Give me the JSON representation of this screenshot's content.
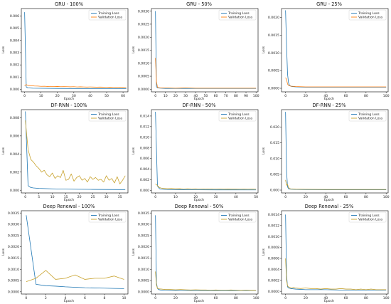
{
  "chart_data": [
    {
      "type": "line",
      "title": "GRU - 100%",
      "xlabel": "Epoch",
      "ylabel": "Loss",
      "xlim": [
        -2,
        63
      ],
      "ylim": [
        -0.0002,
        0.0066
      ],
      "xticks": [
        0,
        10,
        20,
        30,
        40,
        50,
        60
      ],
      "yticks": [
        0.0,
        0.001,
        0.002,
        0.003,
        0.004,
        0.005,
        0.006
      ],
      "ytick_labels": [
        "0.000",
        "0.001",
        "0.002",
        "0.003",
        "0.004",
        "0.005",
        "0.006"
      ],
      "legend": "top-right",
      "series": [
        {
          "name": "Training Loss",
          "color": "#1f77b4",
          "x": [
            0,
            1,
            2,
            5,
            10,
            20,
            30,
            40,
            50,
            60,
            62
          ],
          "y": [
            0.0063,
            0.0002,
            0.00012,
            0.0001,
            9e-05,
            8e-05,
            7e-05,
            7e-05,
            6e-05,
            6e-05,
            6e-05
          ]
        },
        {
          "name": "Validation Loss",
          "color": "#ff7f0e",
          "x": [
            0,
            1,
            2,
            4,
            6,
            8,
            10,
            12,
            14,
            16,
            18,
            20,
            22,
            24,
            26,
            28,
            30,
            32,
            34,
            36,
            38,
            40,
            42,
            44,
            46,
            48,
            50,
            52,
            54,
            56,
            58,
            60,
            62
          ],
          "y": [
            0.0003,
            0.0004,
            0.00032,
            0.0003,
            0.00028,
            0.00027,
            0.00025,
            0.00026,
            0.00024,
            0.00025,
            0.00023,
            0.00024,
            0.00022,
            0.00023,
            0.00022,
            0.00021,
            0.00022,
            0.0002,
            0.00021,
            0.0002,
            0.00019,
            0.0002,
            0.00019,
            0.00018,
            0.00019,
            0.00018,
            0.00017,
            0.00018,
            0.00017,
            0.00016,
            0.00017,
            0.00016,
            0.00015
          ]
        }
      ]
    },
    {
      "type": "line",
      "title": "GRU - 50%",
      "xlabel": "Epoch",
      "ylabel": "Loss",
      "xlim": [
        -4,
        102
      ],
      "ylim": [
        -0.0001,
        0.0031
      ],
      "xticks": [
        0,
        10,
        20,
        30,
        40,
        50,
        60,
        70,
        80,
        90,
        100
      ],
      "yticks": [
        0.0,
        0.0005,
        0.001,
        0.0015,
        0.002,
        0.0025,
        0.003
      ],
      "ytick_labels": [
        "0.0000",
        "0.0005",
        "0.0010",
        "0.0015",
        "0.0020",
        "0.0025",
        "0.0030"
      ],
      "legend": "top-right",
      "series": [
        {
          "name": "Training Loss",
          "color": "#1f77b4",
          "x": [
            0,
            1,
            2,
            5,
            10,
            30,
            60,
            100
          ],
          "y": [
            0.003,
            0.0001,
            5e-05,
            4e-05,
            3e-05,
            3e-05,
            3e-05,
            3e-05
          ]
        },
        {
          "name": "Validation Loss",
          "color": "#ff7f0e",
          "x": [
            0,
            1,
            2,
            3,
            5,
            10,
            20,
            30,
            40,
            50,
            60,
            70,
            80,
            90,
            100
          ],
          "y": [
            0.0012,
            0.0003,
            8e-05,
            6e-05,
            5e-05,
            5e-05,
            4e-05,
            5e-05,
            4e-05,
            4e-05,
            4e-05,
            4e-05,
            4e-05,
            4e-05,
            4e-05
          ]
        }
      ]
    },
    {
      "type": "line",
      "title": "GRU - 25%",
      "xlabel": "Epoch",
      "ylabel": "Loss",
      "xlim": [
        -4,
        102
      ],
      "ylim": [
        -0.0001,
        0.00225
      ],
      "xticks": [
        0,
        20,
        40,
        60,
        80,
        100
      ],
      "yticks": [
        0.0,
        0.0005,
        0.001,
        0.0015,
        0.002
      ],
      "ytick_labels": [
        "0.0000",
        "0.0005",
        "0.0010",
        "0.0015",
        "0.0020"
      ],
      "legend": "top-right",
      "series": [
        {
          "name": "Training Loss",
          "color": "#1f77b4",
          "x": [
            0,
            1,
            2,
            3,
            4,
            6,
            10,
            20,
            40,
            60,
            80,
            100
          ],
          "y": [
            0.0022,
            0.0012,
            0.0004,
            0.00015,
            8e-05,
            5e-05,
            4e-05,
            3e-05,
            3e-05,
            3e-05,
            3e-05,
            3e-05
          ]
        },
        {
          "name": "Validation Loss",
          "color": "#ff7f0e",
          "x": [
            0,
            1,
            2,
            3,
            5,
            10,
            20,
            40,
            60,
            80,
            100
          ],
          "y": [
            0.0003,
            0.00025,
            0.00012,
            8e-05,
            6e-05,
            5e-05,
            4e-05,
            4e-05,
            4e-05,
            4e-05,
            4e-05
          ]
        }
      ]
    },
    {
      "type": "line",
      "title": "DF-RNN - 100%",
      "xlabel": "Epoch",
      "ylabel": "Loss",
      "xlim": [
        -1.5,
        38
      ],
      "ylim": [
        -0.0003,
        0.0089
      ],
      "xticks": [
        0,
        5,
        10,
        15,
        20,
        25,
        30,
        35
      ],
      "yticks": [
        0.0,
        0.002,
        0.004,
        0.006,
        0.008
      ],
      "ytick_labels": [
        "0.000",
        "0.002",
        "0.004",
        "0.006",
        "0.008"
      ],
      "legend": "top-right",
      "series": [
        {
          "name": "Training Loss",
          "color": "#1f77b4",
          "x": [
            0,
            1,
            2,
            3,
            5,
            10,
            15,
            20,
            25,
            30,
            35,
            37
          ],
          "y": [
            0.0087,
            0.0005,
            0.0003,
            0.00025,
            0.0002,
            0.00015,
            0.00012,
            0.0001,
            9e-05,
            8e-05,
            7e-05,
            7e-05
          ]
        },
        {
          "name": "Validation Loss",
          "color": "#c8a22d",
          "x": [
            0,
            1,
            2,
            3,
            4,
            5,
            6,
            7,
            8,
            9,
            10,
            11,
            12,
            13,
            14,
            15,
            16,
            17,
            18,
            19,
            20,
            21,
            22,
            23,
            24,
            25,
            26,
            27,
            28,
            29,
            30,
            31,
            32,
            33,
            34,
            35,
            36,
            37
          ],
          "y": [
            0.0077,
            0.0045,
            0.0034,
            0.0031,
            0.0027,
            0.0024,
            0.002,
            0.0022,
            0.0017,
            0.0015,
            0.0019,
            0.0013,
            0.0016,
            0.0014,
            0.0022,
            0.0011,
            0.0012,
            0.0018,
            0.001,
            0.0014,
            0.0016,
            0.0011,
            0.0013,
            0.0009,
            0.0015,
            0.0012,
            0.0014,
            0.0011,
            0.0012,
            0.0009,
            0.0016,
            0.0011,
            0.0013,
            0.0008,
            0.0015,
            0.0007,
            0.0011,
            0.0016
          ]
        }
      ]
    },
    {
      "type": "line",
      "title": "DF-RNN - 50%",
      "xlabel": "Epoch",
      "ylabel": "Loss",
      "xlim": [
        -2,
        51
      ],
      "ylim": [
        -0.0005,
        0.0152
      ],
      "xticks": [
        0,
        10,
        20,
        30,
        40,
        50
      ],
      "yticks": [
        0.0,
        0.002,
        0.004,
        0.006,
        0.008,
        0.01,
        0.012,
        0.014
      ],
      "ytick_labels": [
        "0.000",
        "0.002",
        "0.004",
        "0.006",
        "0.008",
        "0.010",
        "0.012",
        "0.014"
      ],
      "legend": "top-right",
      "series": [
        {
          "name": "Training Loss",
          "color": "#1f77b4",
          "x": [
            0,
            1,
            2,
            3,
            5,
            10,
            20,
            30,
            40,
            50
          ],
          "y": [
            0.0148,
            0.0008,
            0.0003,
            0.0002,
            0.00015,
            0.0001,
            9e-05,
            8e-05,
            8e-05,
            7e-05
          ]
        },
        {
          "name": "Validation Loss",
          "color": "#c8a22d",
          "x": [
            0,
            1,
            2,
            3,
            4,
            6,
            8,
            10,
            12,
            14,
            16,
            18,
            20,
            22,
            24,
            26,
            28,
            30,
            32,
            34,
            36,
            38,
            40,
            42,
            44,
            46,
            48,
            50
          ],
          "y": [
            0.0012,
            0.0009,
            0.0005,
            0.0004,
            0.00035,
            0.0003,
            0.00033,
            0.00028,
            0.0003,
            0.00026,
            0.00029,
            0.00025,
            0.00027,
            0.00024,
            0.00026,
            0.00023,
            0.00025,
            0.00022,
            0.00024,
            0.00021,
            0.00023,
            0.00021,
            0.00022,
            0.0002,
            0.00021,
            0.0002,
            0.00021,
            0.0002
          ]
        }
      ]
    },
    {
      "type": "line",
      "title": "DF-RNN - 25%",
      "xlabel": "Epoch",
      "ylabel": "Loss",
      "xlim": [
        -4,
        102
      ],
      "ylim": [
        -0.0009,
        0.0255
      ],
      "xticks": [
        0,
        20,
        40,
        60,
        80,
        100
      ],
      "yticks": [
        0.0,
        0.005,
        0.01,
        0.015,
        0.02
      ],
      "ytick_labels": [
        "0.000",
        "0.005",
        "0.010",
        "0.015",
        "0.020"
      ],
      "legend": "top-right",
      "series": [
        {
          "name": "Training Loss",
          "color": "#1f77b4",
          "x": [
            0,
            1,
            2,
            3,
            5,
            10,
            20,
            40,
            60,
            80,
            100
          ],
          "y": [
            0.0248,
            0.006,
            0.001,
            0.0004,
            0.0003,
            0.0002,
            0.00015,
            0.0001,
            0.0001,
            0.0001,
            0.0001
          ]
        },
        {
          "name": "Validation Loss",
          "color": "#c8a22d",
          "x": [
            0,
            1,
            2,
            3,
            4,
            5,
            10,
            20,
            40,
            60,
            80,
            100
          ],
          "y": [
            0.0032,
            0.0015,
            0.0018,
            0.0008,
            0.0005,
            0.0004,
            0.0003,
            0.00025,
            0.0002,
            0.0002,
            0.0002,
            0.0002
          ]
        }
      ]
    },
    {
      "type": "line",
      "title": "Deep Renewal - 100%",
      "xlabel": "Epoch",
      "ylabel": "Loss",
      "xlim": [
        -0.5,
        10.4
      ],
      "ylim": [
        -0.0001,
        0.0036
      ],
      "xticks": [
        0,
        2,
        4,
        6,
        8,
        10
      ],
      "yticks": [
        0.0,
        0.0005,
        0.001,
        0.0015,
        0.002,
        0.0025,
        0.003,
        0.0035
      ],
      "ytick_labels": [
        "0.0000",
        "0.0005",
        "0.0010",
        "0.0015",
        "0.0020",
        "0.0025",
        "0.0030",
        "0.0035"
      ],
      "legend": "top-right",
      "series": [
        {
          "name": "Training Loss",
          "color": "#1f77b4",
          "x": [
            0,
            1,
            2,
            3,
            4,
            5,
            6,
            7,
            8,
            9,
            10
          ],
          "y": [
            0.0034,
            0.00033,
            0.00027,
            0.00025,
            0.00022,
            0.0002,
            0.00018,
            0.00017,
            0.00016,
            0.00015,
            0.00014
          ]
        },
        {
          "name": "Validation Loss",
          "color": "#c8a22d",
          "x": [
            0,
            1,
            2,
            3,
            4,
            5,
            6,
            7,
            8,
            9,
            10
          ],
          "y": [
            0.00045,
            0.0006,
            0.00095,
            0.00055,
            0.0006,
            0.00075,
            0.00055,
            0.0006,
            0.0006,
            0.0007,
            0.00055
          ]
        }
      ]
    },
    {
      "type": "line",
      "title": "Deep Renewal - 50%",
      "xlabel": "Epoch",
      "ylabel": "Loss",
      "xlim": [
        -4,
        102
      ],
      "ylim": [
        -0.0001,
        0.0036
      ],
      "xticks": [
        0,
        20,
        40,
        60,
        80,
        100
      ],
      "yticks": [
        0.0,
        0.0005,
        0.001,
        0.0015,
        0.002,
        0.0025,
        0.003,
        0.0035
      ],
      "ytick_labels": [
        "0.0000",
        "0.0005",
        "0.0010",
        "0.0015",
        "0.0020",
        "0.0025",
        "0.0030",
        "0.0035"
      ],
      "legend": "top-right",
      "series": [
        {
          "name": "Training Loss",
          "color": "#1f77b4",
          "x": [
            0,
            1,
            2,
            3,
            5,
            10,
            20,
            40,
            60,
            80,
            100
          ],
          "y": [
            0.0034,
            0.0004,
            0.00015,
            0.0001,
            8e-05,
            7e-05,
            6e-05,
            5e-05,
            5e-05,
            5e-05,
            5e-05
          ]
        },
        {
          "name": "Validation Loss",
          "color": "#c8a22d",
          "x": [
            0,
            1,
            2,
            4,
            6,
            8,
            10,
            15,
            20,
            25,
            30,
            35,
            40,
            45,
            50,
            55,
            60,
            65,
            70,
            75,
            80,
            85,
            90,
            95,
            100
          ],
          "y": [
            0.0009,
            0.0003,
            0.00015,
            0.00013,
            0.00012,
            0.00011,
            0.0001,
            0.0001,
            9e-05,
            0.0001,
            9e-05,
            8e-05,
            9e-05,
            8e-05,
            8e-05,
            7e-05,
            8e-05,
            7e-05,
            7e-05,
            8e-05,
            7e-05,
            6e-05,
            7e-05,
            6e-05,
            6e-05
          ]
        }
      ]
    },
    {
      "type": "line",
      "title": "Deep Renewal - 25%",
      "xlabel": "Epoch",
      "ylabel": "Loss",
      "xlim": [
        -4,
        102
      ],
      "ylim": [
        -5e-05,
        0.00147
      ],
      "xticks": [
        0,
        20,
        40,
        60,
        80,
        100
      ],
      "yticks": [
        0.0,
        0.0002,
        0.0004,
        0.0006,
        0.0008,
        0.001,
        0.0012,
        0.0014
      ],
      "ytick_labels": [
        "0.0000",
        "0.0002",
        "0.0004",
        "0.0006",
        "0.0008",
        "0.0010",
        "0.0012",
        "0.0014"
      ],
      "legend": "top-right",
      "series": [
        {
          "name": "Training Loss",
          "color": "#1f77b4",
          "x": [
            0,
            1,
            2,
            3,
            5,
            10,
            20,
            40,
            60,
            80,
            100
          ],
          "y": [
            0.0014,
            0.0003,
            8e-05,
            6e-05,
            5e-05,
            4e-05,
            3e-05,
            3e-05,
            2e-05,
            2e-05,
            2e-05
          ]
        },
        {
          "name": "Validation Loss",
          "color": "#c8a22d",
          "x": [
            0,
            1,
            2,
            3,
            4,
            6,
            8,
            10,
            15,
            20,
            25,
            30,
            35,
            40,
            45,
            50,
            55,
            60,
            65,
            70,
            75,
            80,
            85,
            90,
            95,
            100
          ],
          "y": [
            0.0006,
            0.0002,
            0.0001,
            8e-05,
            7e-05,
            6e-05,
            7e-05,
            6e-05,
            5e-05,
            6e-05,
            5e-05,
            5e-05,
            4e-05,
            5e-05,
            4e-05,
            4e-05,
            5e-05,
            4e-05,
            4e-05,
            3e-05,
            4e-05,
            3e-05,
            4e-05,
            3e-05,
            3e-05,
            3e-05
          ]
        }
      ]
    }
  ]
}
